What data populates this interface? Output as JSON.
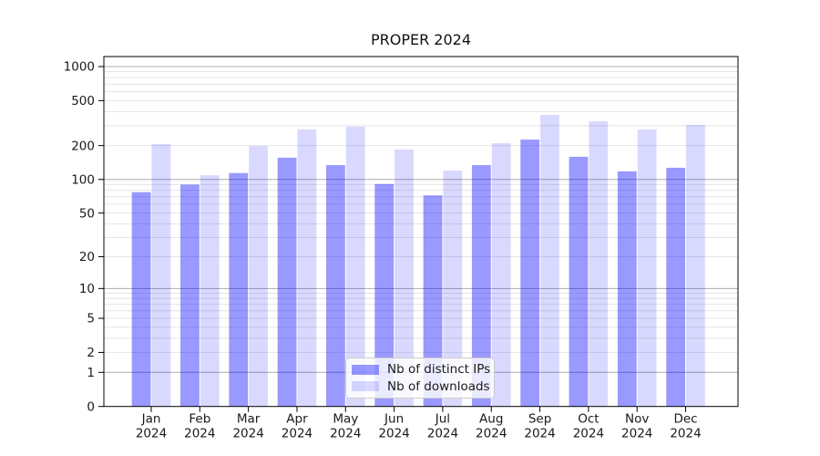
{
  "figure": {
    "background": "#ffffff",
    "text_color": "#1a1a1a"
  },
  "chart_data": {
    "type": "bar",
    "title": "PROPER 2024",
    "categories": [
      "Jan",
      "Feb",
      "Mar",
      "Apr",
      "May",
      "Jun",
      "Jul",
      "Aug",
      "Sep",
      "Oct",
      "Nov",
      "Dec"
    ],
    "x_year": "2024",
    "series": [
      {
        "name": "Nb of distinct IPs",
        "color": "rgba(0,0,255,0.4)",
        "values": [
          77,
          90,
          114,
          156,
          134,
          91,
          72,
          134,
          226,
          159,
          118,
          127
        ]
      },
      {
        "name": "Nb of downloads",
        "color": "rgba(0,0,255,0.15)",
        "values": [
          206,
          109,
          198,
          278,
          294,
          185,
          120,
          210,
          374,
          328,
          278,
          305
        ]
      }
    ],
    "yscale": "log10(value+1)",
    "yticks": [
      0,
      1,
      2,
      5,
      10,
      20,
      50,
      100,
      200,
      500,
      1000
    ],
    "ylim": [
      0,
      1228
    ],
    "xlabel": "",
    "ylabel": "",
    "grid": {
      "on": true,
      "decade_lines": [
        1,
        10,
        100,
        1000
      ],
      "decade_color": "#ababab",
      "minor_color": "#e4e4e4"
    },
    "legend_position": "lower center",
    "spine_color": "#000000"
  }
}
